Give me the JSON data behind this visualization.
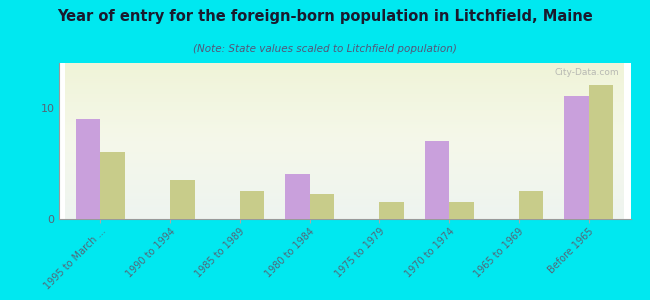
{
  "title": "Year of entry for the foreign-born population in Litchfield, Maine",
  "subtitle": "(Note: State values scaled to Litchfield population)",
  "categories": [
    "1995 to March ...",
    "1990 to 1994",
    "1985 to 1989",
    "1980 to 1984",
    "1975 to 1979",
    "1970 to 1974",
    "1965 to 1969",
    "Before 1965"
  ],
  "litchfield_values": [
    9,
    0,
    0,
    4,
    0,
    7,
    0,
    11
  ],
  "maine_values": [
    6,
    3.5,
    2.5,
    2.2,
    1.5,
    1.5,
    2.5,
    12
  ],
  "litchfield_color": "#c9a0dc",
  "maine_color": "#c8cc8a",
  "background_color": "#00e8f0",
  "title_color": "#1a1a2e",
  "subtitle_color": "#555577",
  "tick_color": "#556677",
  "ylim": [
    0,
    14
  ],
  "yticks": [
    0,
    10
  ],
  "bar_width": 0.35,
  "watermark": "City-Data.com"
}
